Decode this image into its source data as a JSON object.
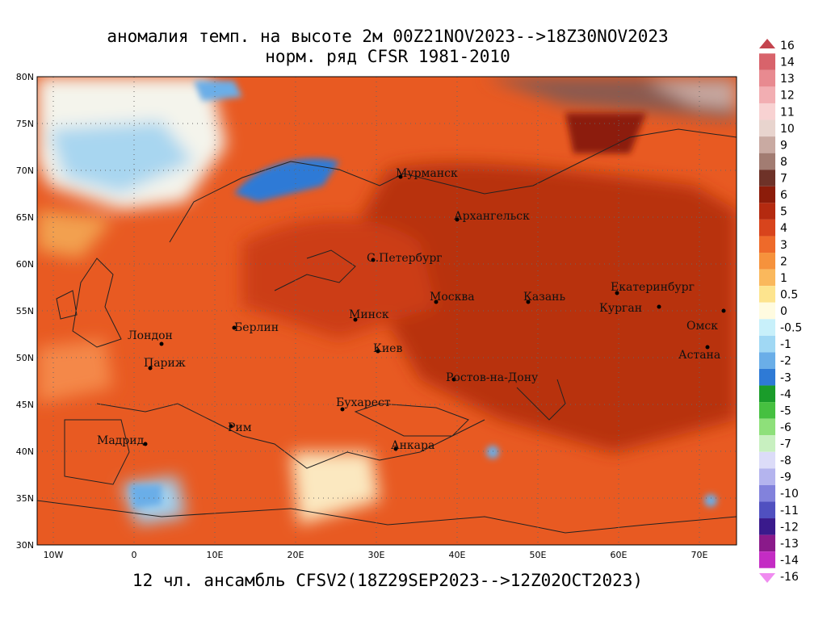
{
  "header": {
    "title_line1": "аномалия темп. на высоте 2м 00Z21NOV2023-->18Z30NOV2023",
    "title_line2": "норм. ряд CFSR 1981-2010"
  },
  "footer": "12 чл. ансамбль CFSV2(18Z29SEP2023-->12Z02OCT2023)",
  "map": {
    "lat_labels": [
      "80N",
      "75N",
      "70N",
      "65N",
      "60N",
      "55N",
      "50N",
      "45N",
      "40N",
      "35N",
      "30N"
    ],
    "lon_labels": [
      "10W",
      "0",
      "10E",
      "20E",
      "30E",
      "40E",
      "50E",
      "60E",
      "70E"
    ],
    "cities": [
      "Мурманск",
      "Архангельск",
      "С.Петербург",
      "Москва",
      "Казань",
      "Екатеринбург",
      "Курган",
      "Омск",
      "Астана",
      "Минск",
      "Киев",
      "Берлин",
      "Лондон",
      "Париж",
      "Ростов-на-Дону",
      "Бухарест",
      "Рим",
      "Мадрид",
      "Анкара"
    ]
  },
  "colorbar": {
    "levels": [
      16,
      14,
      13,
      12,
      11,
      10,
      9,
      8,
      7,
      6,
      5,
      4,
      3,
      2,
      1,
      0.5,
      0,
      -0.5,
      -1,
      -2,
      -3,
      -4,
      -5,
      -6,
      -7,
      -8,
      -9,
      -10,
      -11,
      -12,
      -13,
      -14,
      -16
    ],
    "colors": [
      "#c4444e",
      "#d8636b",
      "#e88a90",
      "#f2aeb2",
      "#f8d2d2",
      "#e8d4ce",
      "#c9aaa2",
      "#a27c72",
      "#6e3228",
      "#8c1c0a",
      "#b42a10",
      "#d8441c",
      "#ee6a2a",
      "#f6923c",
      "#fab85c",
      "#fde48e",
      "#fffbe0",
      "#c8f0fa",
      "#a0d8f4",
      "#6aaee8",
      "#2e7ad6",
      "#1a9c2a",
      "#46c040",
      "#8ee07a",
      "#c8f0c0",
      "#dcdcf8",
      "#b4b4ee",
      "#8282dc",
      "#5050c0",
      "#3a1a8c",
      "#8a1a8a",
      "#c42cc4",
      "#f08cf0"
    ]
  }
}
